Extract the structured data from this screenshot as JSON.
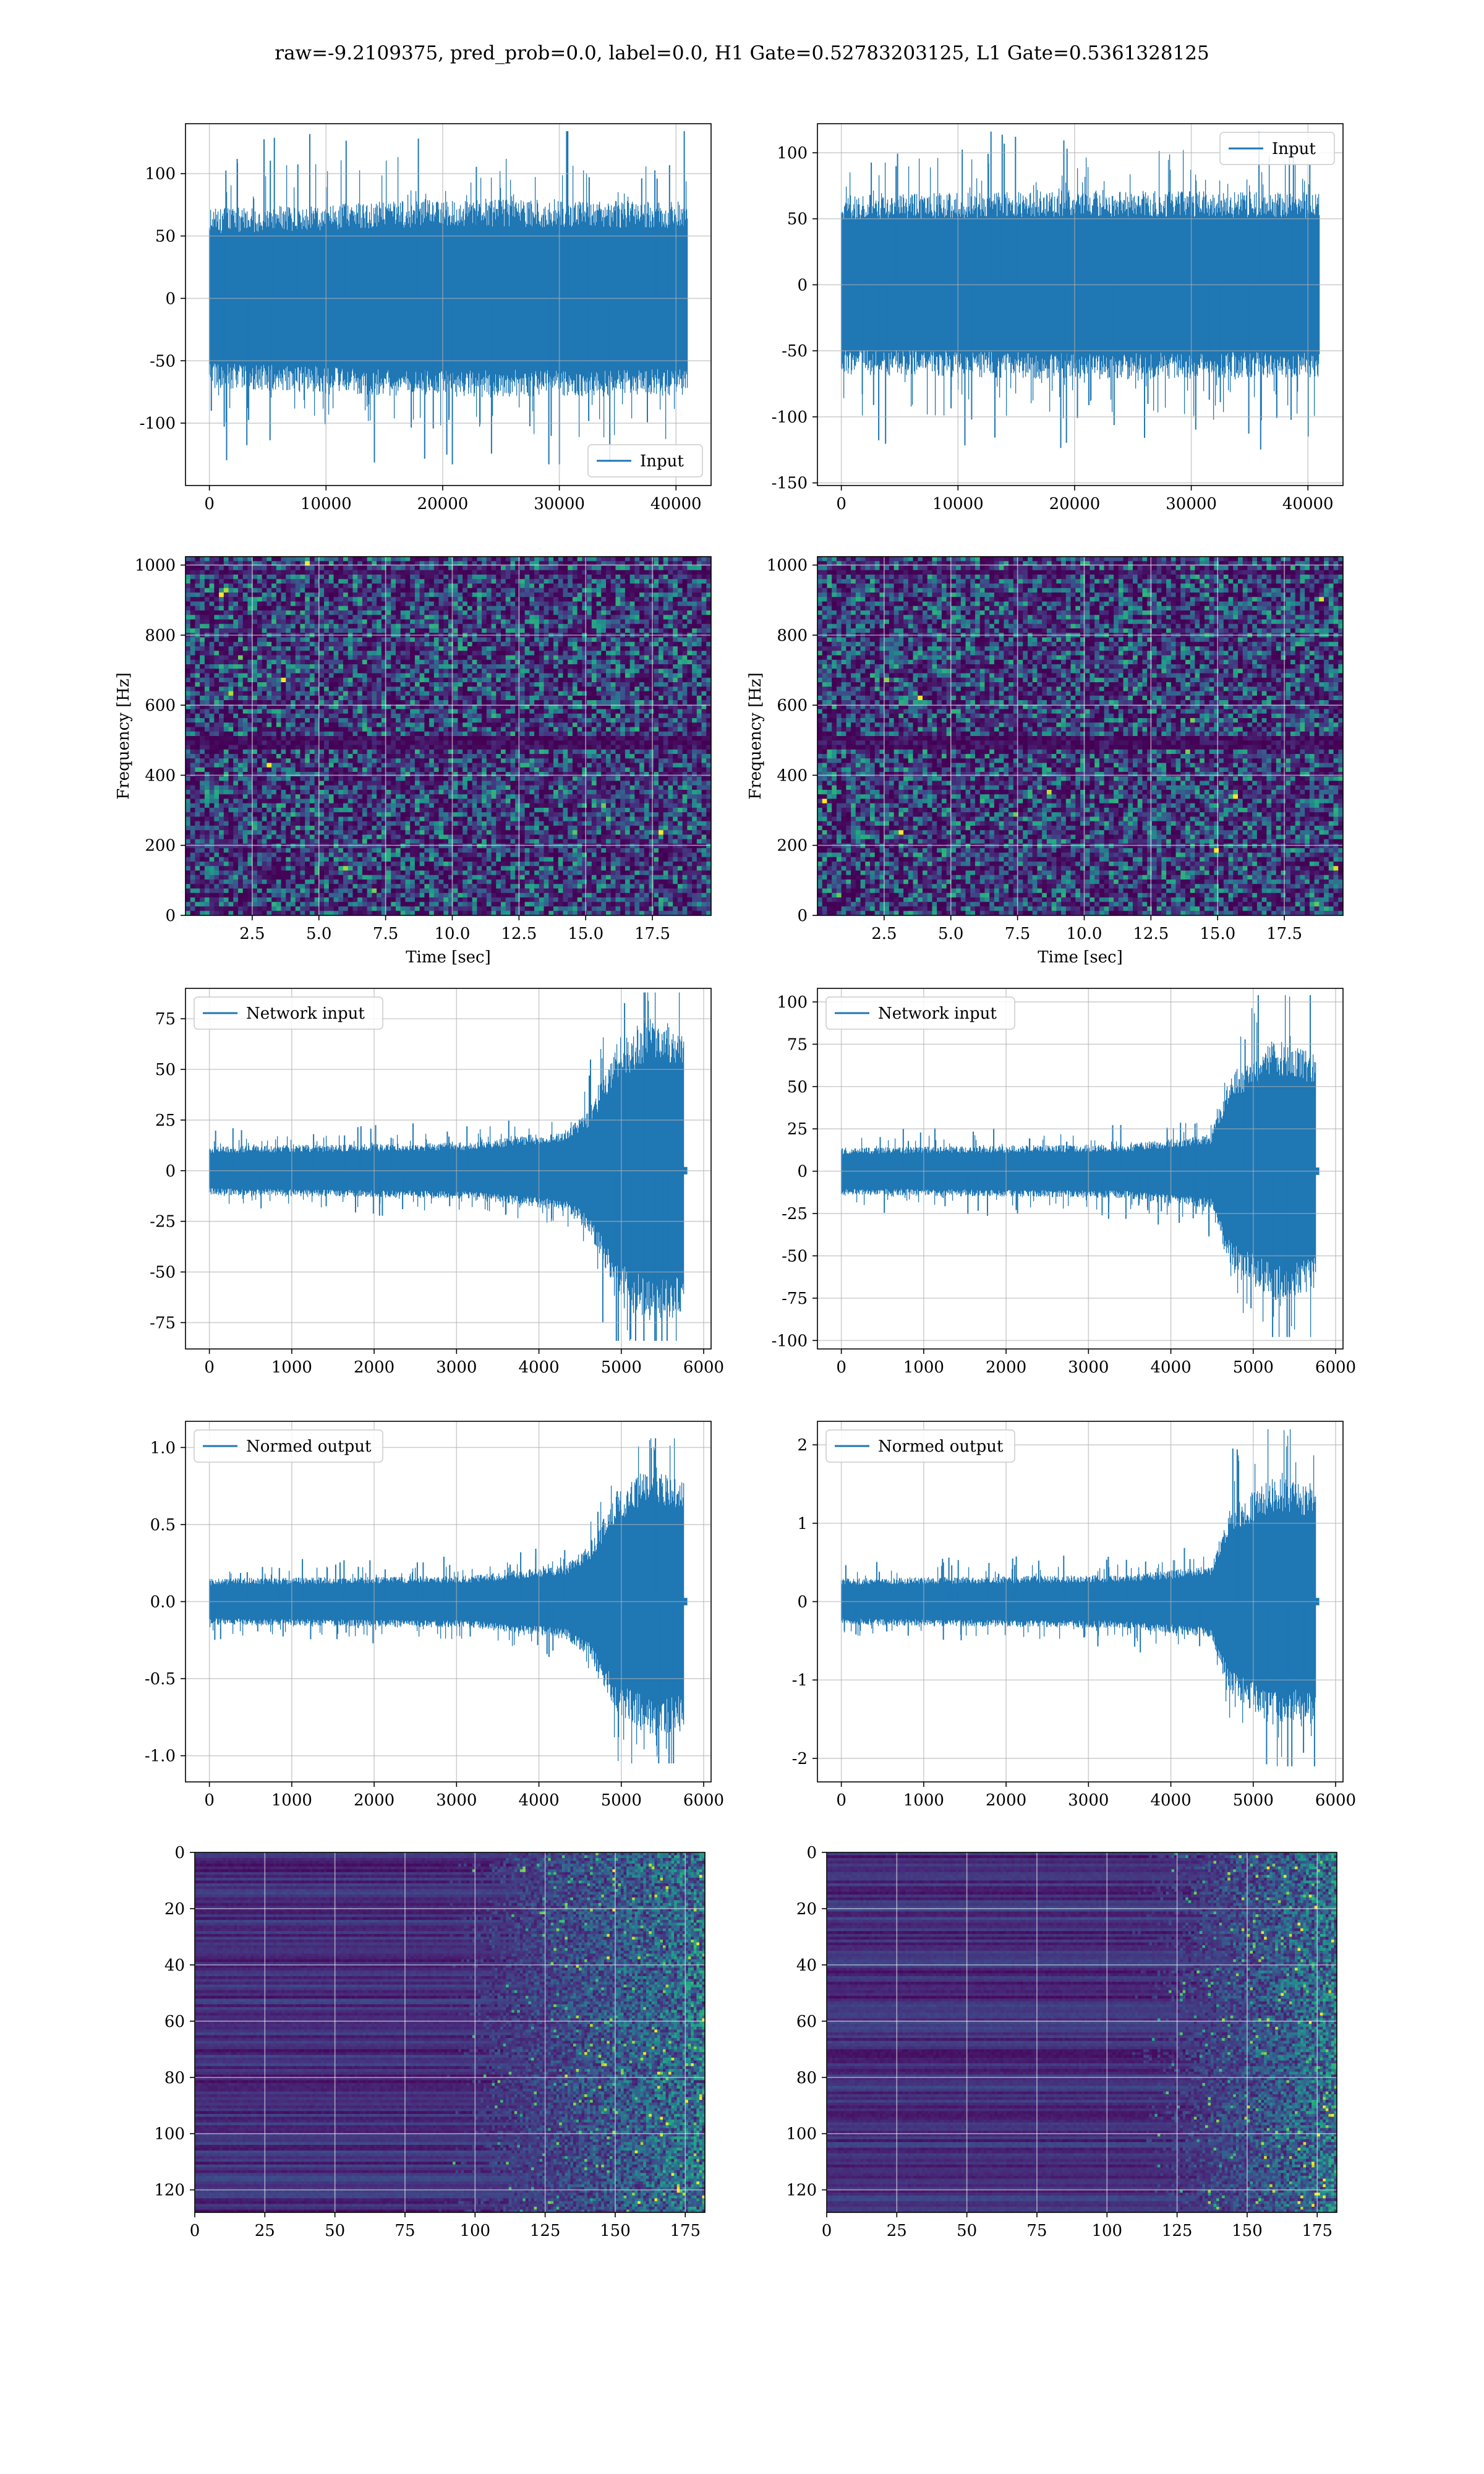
{
  "figure_title": "raw=-9.2109375, pred_prob=0.0, label=0.0, H1 Gate=0.52783203125, L1 Gate=0.5361328125",
  "chart_data": [
    {
      "id": "h1-input",
      "type": "line",
      "legend": "Input",
      "legend_loc": "lower right",
      "xlim": [
        -2048,
        43008
      ],
      "ylim": [
        -150,
        140
      ],
      "xticks": [
        0,
        10000,
        20000,
        30000,
        40000
      ],
      "yticks": [
        -100,
        -50,
        0,
        50,
        100
      ],
      "grid": true,
      "signal": {
        "n": 40960,
        "envelope": [
          [
            0,
            72
          ],
          [
            0.5,
            80
          ],
          [
            1,
            78
          ]
        ],
        "peak_max": 134,
        "peak_min": -133,
        "color": "#1f77b4"
      }
    },
    {
      "id": "l1-input",
      "type": "line",
      "legend": "Input",
      "legend_loc": "upper right",
      "xlim": [
        -2048,
        43008
      ],
      "ylim": [
        -152,
        122
      ],
      "xticks": [
        0,
        10000,
        20000,
        30000,
        40000
      ],
      "yticks": [
        -150,
        -100,
        -50,
        0,
        50,
        100
      ],
      "grid": true,
      "signal": {
        "n": 40960,
        "envelope": [
          [
            0,
            68
          ],
          [
            0.5,
            72
          ],
          [
            1,
            70
          ]
        ],
        "peak_max": 116,
        "peak_min": -140,
        "color": "#1f77b4"
      }
    },
    {
      "id": "h1-spectrogram",
      "type": "heatmap",
      "colormap": "viridis",
      "xlabel": "Time [sec]",
      "ylabel": "Frequency [Hz]",
      "xlim": [
        0,
        19.7
      ],
      "ylim": [
        0,
        1024
      ],
      "xticks": [
        2.5,
        5.0,
        7.5,
        10.0,
        12.5,
        15.0,
        17.5
      ],
      "yticks": [
        0,
        200,
        400,
        600,
        800,
        1000
      ],
      "grid": true
    },
    {
      "id": "l1-spectrogram",
      "type": "heatmap",
      "colormap": "viridis",
      "xlabel": "Time [sec]",
      "ylabel": "Frequency [Hz]",
      "xlim": [
        0,
        19.7
      ],
      "ylim": [
        0,
        1024
      ],
      "xticks": [
        2.5,
        5.0,
        7.5,
        10.0,
        12.5,
        15.0,
        17.5
      ],
      "yticks": [
        0,
        200,
        400,
        600,
        800,
        1000
      ],
      "grid": true
    },
    {
      "id": "h1-network-input",
      "type": "line",
      "legend": "Network input",
      "legend_loc": "upper left",
      "xlim": [
        -290,
        6090
      ],
      "ylim": [
        -88,
        90
      ],
      "xticks": [
        0,
        1000,
        2000,
        3000,
        4000,
        5000,
        6000
      ],
      "yticks": [
        -75,
        -50,
        -25,
        0,
        25,
        50,
        75
      ],
      "grid": true,
      "signal": {
        "n": 5760,
        "tail_end": 5800,
        "envelope": [
          [
            0,
            12
          ],
          [
            0.55,
            14
          ],
          [
            0.75,
            20
          ],
          [
            0.8,
            30
          ],
          [
            0.86,
            62
          ],
          [
            0.93,
            75
          ],
          [
            1,
            72
          ]
        ],
        "peak_max": 88,
        "peak_min": -84,
        "color": "#1f77b4"
      }
    },
    {
      "id": "l1-network-input",
      "type": "line",
      "legend": "Network input",
      "legend_loc": "upper left",
      "xlim": [
        -290,
        6090
      ],
      "ylim": [
        -105,
        108
      ],
      "xticks": [
        0,
        1000,
        2000,
        3000,
        4000,
        5000,
        6000
      ],
      "yticks": [
        -100,
        -75,
        -50,
        -25,
        0,
        25,
        50,
        75,
        100
      ],
      "grid": true,
      "signal": {
        "n": 5760,
        "tail_end": 5800,
        "envelope": [
          [
            0,
            14
          ],
          [
            0.6,
            16
          ],
          [
            0.78,
            22
          ],
          [
            0.82,
            58
          ],
          [
            0.92,
            78
          ],
          [
            1,
            70
          ]
        ],
        "peak_max": 104,
        "peak_min": -98,
        "color": "#1f77b4"
      }
    },
    {
      "id": "h1-normed-output",
      "type": "line",
      "legend": "Normed output",
      "legend_loc": "upper left",
      "xlim": [
        -290,
        6090
      ],
      "ylim": [
        -1.17,
        1.17
      ],
      "xticks": [
        0,
        1000,
        2000,
        3000,
        4000,
        5000,
        6000
      ],
      "yticks": [
        -1.0,
        -0.5,
        0.0,
        0.5,
        1.0
      ],
      "tick_decimals": 1,
      "grid": true,
      "signal": {
        "n": 5760,
        "tail_end": 5800,
        "envelope": [
          [
            0,
            0.15
          ],
          [
            0.55,
            0.17
          ],
          [
            0.75,
            0.24
          ],
          [
            0.8,
            0.36
          ],
          [
            0.86,
            0.72
          ],
          [
            0.93,
            0.88
          ],
          [
            1,
            0.84
          ]
        ],
        "peak_max": 1.06,
        "peak_min": -1.05,
        "color": "#1f77b4"
      }
    },
    {
      "id": "l1-normed-output",
      "type": "line",
      "legend": "Normed output",
      "legend_loc": "upper left",
      "xlim": [
        -290,
        6090
      ],
      "ylim": [
        -2.3,
        2.3
      ],
      "xticks": [
        0,
        1000,
        2000,
        3000,
        4000,
        5000,
        6000
      ],
      "yticks": [
        -2,
        -1,
        0,
        1,
        2
      ],
      "grid": true,
      "signal": {
        "n": 5760,
        "tail_end": 5800,
        "envelope": [
          [
            0,
            0.3
          ],
          [
            0.6,
            0.34
          ],
          [
            0.78,
            0.46
          ],
          [
            0.82,
            1.22
          ],
          [
            0.92,
            1.62
          ],
          [
            1,
            1.45
          ]
        ],
        "peak_max": 2.2,
        "peak_min": -2.1,
        "color": "#1f77b4"
      }
    },
    {
      "id": "h1-feature-map",
      "type": "heatmap",
      "colormap": "viridis",
      "xlim": [
        0,
        182
      ],
      "ylim": [
        128,
        0
      ],
      "xticks": [
        0,
        25,
        50,
        75,
        100,
        125,
        150,
        175
      ],
      "yticks": [
        0,
        20,
        40,
        60,
        80,
        100,
        120
      ],
      "grid": true,
      "activation_onset": 100
    },
    {
      "id": "l1-feature-map",
      "type": "heatmap",
      "colormap": "viridis",
      "xlim": [
        0,
        182
      ],
      "ylim": [
        128,
        0
      ],
      "xticks": [
        0,
        25,
        50,
        75,
        100,
        125,
        150,
        175
      ],
      "yticks": [
        0,
        20,
        40,
        60,
        80,
        100,
        120
      ],
      "grid": true,
      "activation_onset": 120
    }
  ]
}
